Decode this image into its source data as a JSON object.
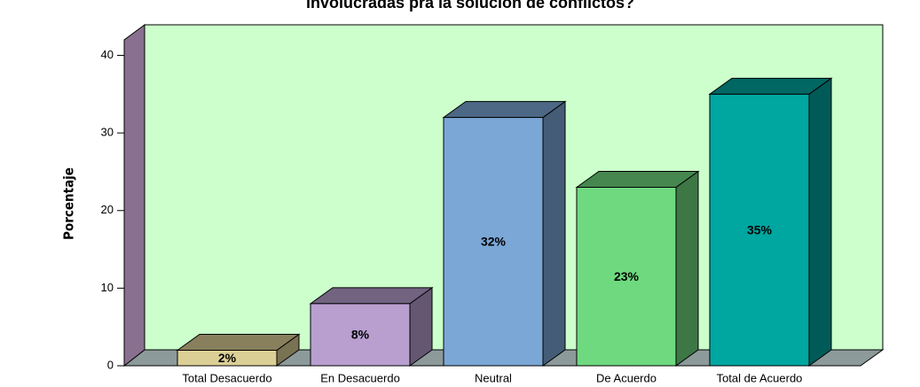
{
  "chart_data": {
    "type": "bar3d",
    "title": "involucradas pra la solución de conflictos?",
    "y_label": "Porcentaje",
    "categories": [
      "Total Desacuerdo",
      "En Desacuerdo",
      "Neutral",
      "De Acuerdo",
      "Total de Acuerdo"
    ],
    "values": [
      2,
      8,
      32,
      23,
      35
    ],
    "value_labels": [
      "2%",
      "8%",
      "32%",
      "23%",
      "35%"
    ],
    "colors": [
      "#dccf96",
      "#b89fd0",
      "#7ba7d6",
      "#6fd97f",
      "#00a6a0"
    ],
    "ylim": [
      0,
      42
    ],
    "yticks": [
      0,
      10,
      20,
      30,
      40
    ]
  }
}
